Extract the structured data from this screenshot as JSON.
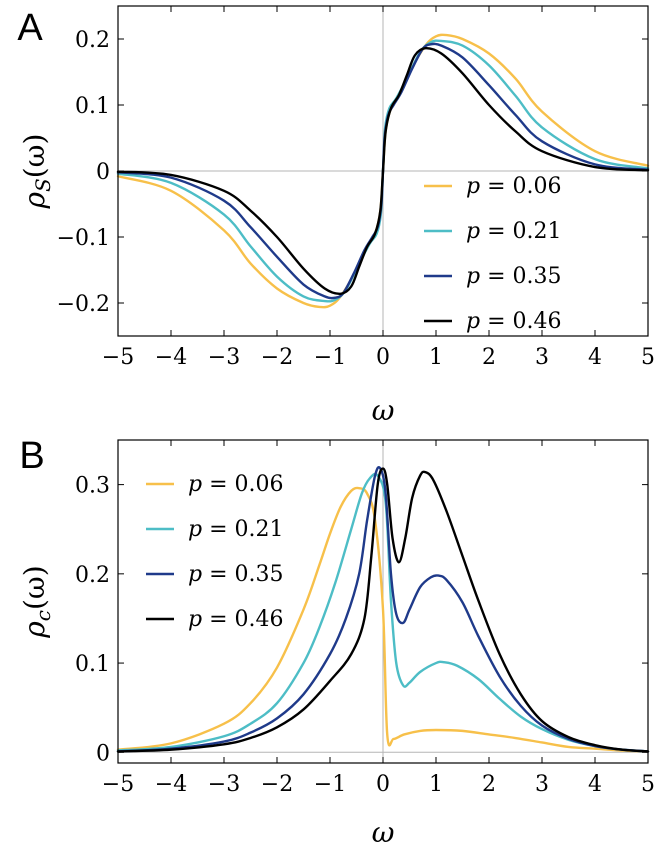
{
  "chart_data": [
    {
      "panel": "A",
      "type": "line",
      "xlabel": "ω",
      "ylabel": "ρS(ω)",
      "ylabel_main": "ρ",
      "ylabel_sub": "S",
      "ylabel_tail": "(ω)",
      "xlim": [
        -5,
        5
      ],
      "ylim": [
        -0.25,
        0.25
      ],
      "xticks": [
        -5,
        -4,
        -3,
        -2,
        -1,
        0,
        1,
        2,
        3,
        4,
        5
      ],
      "xtick_labels": [
        "−5",
        "−4",
        "−3",
        "−2",
        "−1",
        "0",
        "1",
        "2",
        "3",
        "4",
        "5"
      ],
      "yticks": [
        -0.2,
        -0.1,
        0,
        0.1,
        0.2
      ],
      "ytick_labels": [
        "−0.2",
        "−0.1",
        "0",
        "0.1",
        "0.2"
      ],
      "legend_position": "lower-right",
      "series": [
        {
          "name": "p = 0.06",
          "label_var": "p",
          "label_value": "= 0.06",
          "color": "#F7C04A",
          "x": [
            -5,
            -4,
            -3,
            -2.5,
            -2,
            -1.5,
            -1.2,
            -1,
            -0.8,
            -0.5,
            -0.3,
            -0.15,
            -0.05,
            0,
            0.05,
            0.15,
            0.3,
            0.5,
            0.8,
            1,
            1.2,
            1.5,
            2,
            2.5,
            3,
            4,
            5
          ],
          "y": [
            -0.008,
            -0.03,
            -0.09,
            -0.14,
            -0.178,
            -0.2,
            -0.206,
            -0.204,
            -0.19,
            -0.15,
            -0.115,
            -0.095,
            -0.06,
            0,
            0.06,
            0.095,
            0.115,
            0.15,
            0.19,
            0.204,
            0.206,
            0.2,
            0.178,
            0.14,
            0.09,
            0.03,
            0.008
          ]
        },
        {
          "name": "p = 0.21",
          "label_var": "p",
          "label_value": "= 0.21",
          "color": "#4DBDC6",
          "x": [
            -5,
            -4,
            -3,
            -2.5,
            -2,
            -1.5,
            -1.1,
            -0.9,
            -0.7,
            -0.45,
            -0.25,
            -0.12,
            -0.04,
            0,
            0.04,
            0.12,
            0.25,
            0.45,
            0.7,
            0.9,
            1.1,
            1.5,
            2,
            2.5,
            3,
            4,
            5
          ],
          "y": [
            -0.004,
            -0.018,
            -0.066,
            -0.114,
            -0.16,
            -0.19,
            -0.197,
            -0.195,
            -0.18,
            -0.14,
            -0.11,
            -0.095,
            -0.065,
            0,
            0.065,
            0.095,
            0.11,
            0.14,
            0.18,
            0.195,
            0.197,
            0.19,
            0.16,
            0.114,
            0.066,
            0.018,
            0.004
          ]
        },
        {
          "name": "p = 0.35",
          "label_var": "p",
          "label_value": "= 0.35",
          "color": "#1F3A8A",
          "x": [
            -5,
            -4,
            -3,
            -2.5,
            -2,
            -1.5,
            -1.1,
            -0.9,
            -0.75,
            -0.55,
            -0.35,
            -0.2,
            -0.1,
            -0.03,
            0,
            0.03,
            0.1,
            0.2,
            0.35,
            0.55,
            0.75,
            0.9,
            1.1,
            1.5,
            2,
            2.5,
            3,
            4,
            5
          ],
          "y": [
            -0.002,
            -0.01,
            -0.045,
            -0.085,
            -0.13,
            -0.172,
            -0.19,
            -0.192,
            -0.185,
            -0.155,
            -0.12,
            -0.1,
            -0.085,
            -0.05,
            0,
            0.05,
            0.085,
            0.1,
            0.12,
            0.155,
            0.185,
            0.192,
            0.19,
            0.172,
            0.13,
            0.085,
            0.045,
            0.01,
            0.002
          ]
        },
        {
          "name": "p = 0.46",
          "label_var": "p",
          "label_value": "= 0.46",
          "color": "#000000",
          "x": [
            -5,
            -4,
            -3,
            -2.5,
            -2,
            -1.5,
            -1.1,
            -0.8,
            -0.6,
            -0.45,
            -0.3,
            -0.15,
            -0.05,
            0,
            0.05,
            0.15,
            0.3,
            0.45,
            0.6,
            0.8,
            1.1,
            1.5,
            2,
            2.5,
            3,
            4,
            5
          ],
          "y": [
            -0.001,
            -0.006,
            -0.03,
            -0.06,
            -0.1,
            -0.148,
            -0.178,
            -0.186,
            -0.175,
            -0.145,
            -0.115,
            -0.095,
            -0.06,
            0,
            0.06,
            0.095,
            0.115,
            0.145,
            0.175,
            0.186,
            0.178,
            0.148,
            0.1,
            0.06,
            0.03,
            0.006,
            0.001
          ]
        }
      ]
    },
    {
      "panel": "B",
      "type": "line",
      "xlabel": "ω",
      "ylabel": "ρc(ω)",
      "ylabel_main": "ρ",
      "ylabel_sub": "c",
      "ylabel_tail": "(ω)",
      "xlim": [
        -5,
        5
      ],
      "ylim": [
        -0.012,
        0.35
      ],
      "xticks": [
        -5,
        -4,
        -3,
        -2,
        -1,
        0,
        1,
        2,
        3,
        4,
        5
      ],
      "xtick_labels": [
        "−5",
        "−4",
        "−3",
        "−2",
        "−1",
        "0",
        "1",
        "2",
        "3",
        "4",
        "5"
      ],
      "yticks": [
        0,
        0.1,
        0.2,
        0.3
      ],
      "ytick_labels": [
        "0",
        "0.1",
        "0.2",
        "0.3"
      ],
      "legend_position": "upper-left",
      "series": [
        {
          "name": "p = 0.06",
          "label_var": "p",
          "label_value": "= 0.06",
          "color": "#F7C04A",
          "x": [
            -5,
            -4,
            -3,
            -2.5,
            -2,
            -1.5,
            -1.2,
            -1,
            -0.8,
            -0.6,
            -0.45,
            -0.3,
            -0.15,
            0,
            0.08,
            0.2,
            0.4,
            0.7,
            1,
            1.5,
            2,
            2.5,
            3,
            3.5,
            4,
            4.5,
            5
          ],
          "y": [
            0.003,
            0.01,
            0.032,
            0.055,
            0.095,
            0.16,
            0.21,
            0.245,
            0.275,
            0.293,
            0.296,
            0.29,
            0.26,
            0.16,
            0.02,
            0.015,
            0.02,
            0.024,
            0.025,
            0.024,
            0.02,
            0.016,
            0.011,
            0.006,
            0.004,
            0.002,
            0.001
          ]
        },
        {
          "name": "p = 0.21",
          "label_var": "p",
          "label_value": "= 0.21",
          "color": "#4DBDC6",
          "x": [
            -5,
            -4,
            -3,
            -2.5,
            -2,
            -1.5,
            -1.2,
            -0.9,
            -0.6,
            -0.4,
            -0.25,
            -0.1,
            0.05,
            0.15,
            0.25,
            0.38,
            0.5,
            0.7,
            1,
            1.15,
            1.4,
            1.8,
            2.2,
            2.6,
            3,
            3.5,
            4,
            4.5,
            5
          ],
          "y": [
            0.002,
            0.006,
            0.018,
            0.032,
            0.055,
            0.1,
            0.14,
            0.19,
            0.25,
            0.29,
            0.307,
            0.31,
            0.28,
            0.17,
            0.1,
            0.075,
            0.078,
            0.09,
            0.1,
            0.101,
            0.097,
            0.082,
            0.06,
            0.04,
            0.026,
            0.014,
            0.007,
            0.003,
            0.001
          ]
        },
        {
          "name": "p = 0.35",
          "label_var": "p",
          "label_value": "= 0.35",
          "color": "#1F3A8A",
          "x": [
            -5,
            -4,
            -3,
            -2.5,
            -2,
            -1.5,
            -1,
            -0.7,
            -0.45,
            -0.3,
            -0.15,
            -0.05,
            0.05,
            0.15,
            0.25,
            0.38,
            0.5,
            0.7,
            0.9,
            1.05,
            1.2,
            1.5,
            1.8,
            2.2,
            2.6,
            3,
            3.5,
            4,
            4.5,
            5
          ],
          "y": [
            0.001,
            0.004,
            0.012,
            0.022,
            0.038,
            0.065,
            0.11,
            0.15,
            0.2,
            0.26,
            0.31,
            0.318,
            0.29,
            0.2,
            0.155,
            0.145,
            0.16,
            0.185,
            0.196,
            0.198,
            0.193,
            0.168,
            0.13,
            0.085,
            0.052,
            0.03,
            0.015,
            0.007,
            0.003,
            0.001
          ]
        },
        {
          "name": "p = 0.46",
          "label_var": "p",
          "label_value": "= 0.46",
          "color": "#000000",
          "x": [
            -5,
            -4,
            -3,
            -2.5,
            -2,
            -1.5,
            -1,
            -0.6,
            -0.35,
            -0.22,
            -0.1,
            0,
            0.08,
            0.18,
            0.3,
            0.42,
            0.55,
            0.7,
            0.8,
            0.95,
            1.2,
            1.5,
            1.8,
            2.2,
            2.6,
            3,
            3.5,
            4,
            4.5,
            5
          ],
          "y": [
            0.001,
            0.003,
            0.009,
            0.016,
            0.028,
            0.048,
            0.08,
            0.11,
            0.15,
            0.22,
            0.3,
            0.318,
            0.3,
            0.24,
            0.213,
            0.24,
            0.285,
            0.31,
            0.314,
            0.305,
            0.27,
            0.22,
            0.17,
            0.11,
            0.065,
            0.035,
            0.017,
            0.008,
            0.003,
            0.001
          ]
        }
      ]
    }
  ]
}
